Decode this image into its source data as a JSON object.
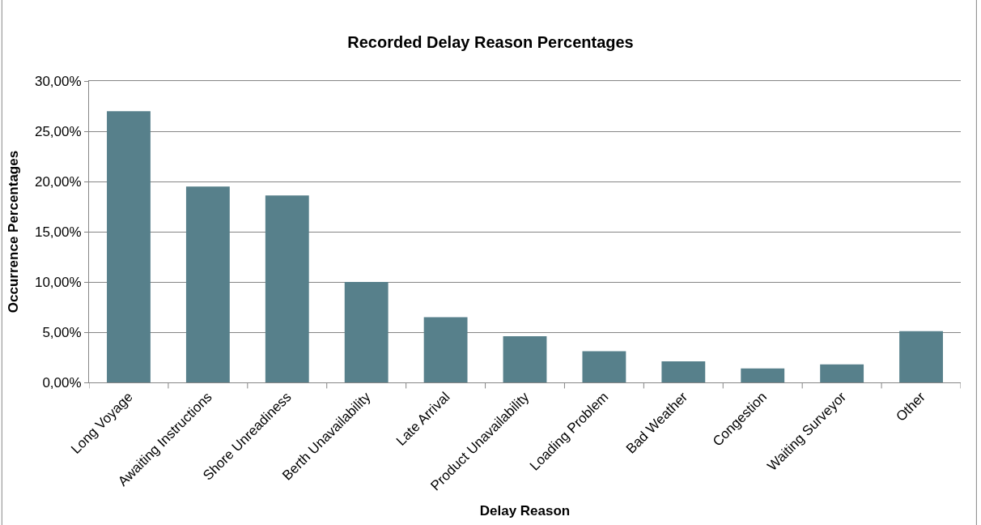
{
  "chart_data": {
    "type": "bar",
    "title": "Recorded Delay Reason Percentages",
    "xlabel": "Delay Reason",
    "ylabel": "Occurrence Percentages",
    "categories": [
      "Long Voyage",
      "Awaiting Instructions",
      "Shore Unreadiness",
      "Berth Unavailability",
      "Late Arrival",
      "Product Unavailability",
      "Loading Problem",
      "Bad Weather",
      "Congestion",
      "Waiting Surveyor",
      "Other"
    ],
    "values": [
      27.0,
      19.5,
      18.6,
      10.0,
      6.5,
      4.6,
      3.1,
      2.1,
      1.4,
      1.8,
      5.1
    ],
    "color": "#57808b",
    "ylim": [
      0,
      30
    ],
    "yticks": [
      {
        "value": 0,
        "label": "0,00%"
      },
      {
        "value": 5,
        "label": "5,00%"
      },
      {
        "value": 10,
        "label": "10,00%"
      },
      {
        "value": 15,
        "label": "15,00%"
      },
      {
        "value": 20,
        "label": "20,00%"
      },
      {
        "value": 25,
        "label": "25,00%"
      },
      {
        "value": 30,
        "label": "30,00%"
      }
    ],
    "grid": "y"
  }
}
